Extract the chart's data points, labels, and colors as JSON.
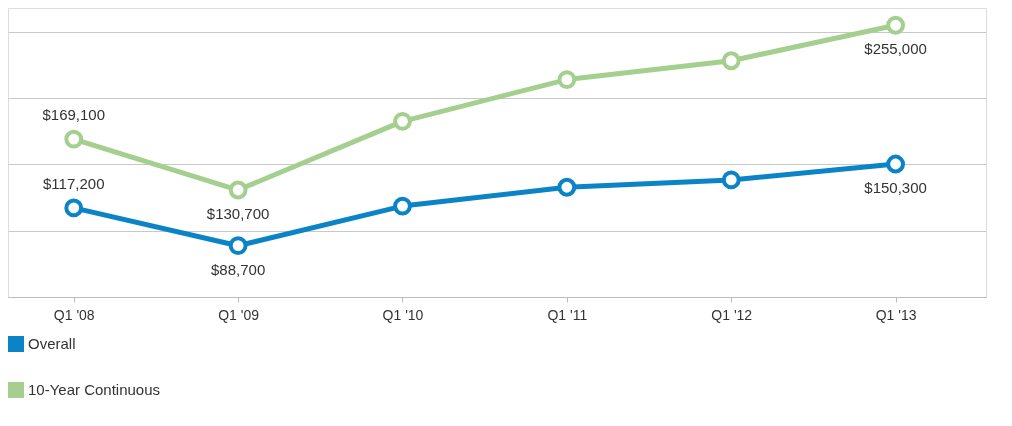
{
  "chart_data": {
    "type": "line",
    "categories": [
      "Q1 '08",
      "Q1 '09",
      "Q1 '10",
      "Q1 '11",
      "Q1 '12",
      "Q1 '13"
    ],
    "series": [
      {
        "name": "Overall",
        "color": "#0a84c6",
        "values": [
          117200,
          88700,
          118600,
          132800,
          138300,
          150300
        ],
        "value_labels": [
          "$117,200",
          "$88,700",
          null,
          null,
          null,
          "$150,300"
        ]
      },
      {
        "name": "10-Year Continuous",
        "color": "#a4cf8f",
        "values": [
          169100,
          130700,
          182500,
          214000,
          228200,
          255000
        ],
        "value_labels": [
          "$169,100",
          "$130,700",
          null,
          null,
          null,
          "$255,000"
        ]
      }
    ],
    "ylim": [
      50000,
      268000
    ],
    "yticks": [
      {
        "value": 50000,
        "label": null
      },
      {
        "value": 100000,
        "label": null
      },
      {
        "value": 150000,
        "label": null
      },
      {
        "value": 200000,
        "label": null
      },
      {
        "value": 250000,
        "label": null
      }
    ],
    "tick_labels": "x",
    "grid": "y",
    "legend": "bottom left",
    "marker": "circle",
    "line_style": "solid"
  }
}
